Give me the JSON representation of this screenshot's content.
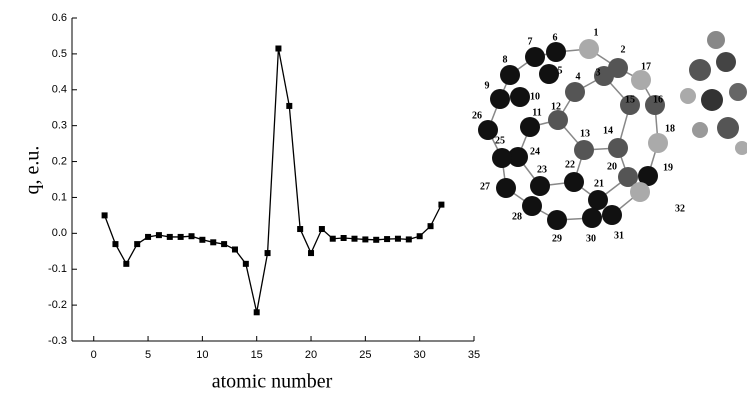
{
  "chart_data": {
    "type": "line",
    "xlabel": "atomic number",
    "ylabel": "q, e.u.",
    "x": [
      1,
      2,
      3,
      4,
      5,
      6,
      7,
      8,
      9,
      10,
      11,
      12,
      13,
      14,
      15,
      16,
      17,
      18,
      19,
      20,
      21,
      22,
      23,
      24,
      25,
      26,
      27,
      28,
      29,
      30,
      31,
      32
    ],
    "values": [
      0.05,
      -0.03,
      -0.085,
      -0.03,
      -0.01,
      -0.005,
      -0.01,
      -0.01,
      -0.008,
      -0.018,
      -0.025,
      -0.03,
      -0.045,
      -0.085,
      -0.22,
      -0.055,
      0.515,
      0.355,
      0.012,
      -0.055,
      0.012,
      -0.015,
      -0.013,
      -0.015,
      -0.017,
      -0.018,
      -0.016,
      -0.015,
      -0.017,
      -0.008,
      0.02,
      0.08
    ],
    "color": "#000000",
    "xlim": [
      -2,
      35
    ],
    "xticks": [
      0,
      5,
      10,
      15,
      20,
      25,
      30,
      35
    ],
    "ylim": [
      -0.3,
      0.6
    ],
    "yticks": [
      0.6,
      0.5,
      0.4,
      0.3,
      0.2,
      0.1,
      {
        "value": 0,
        "label": "0.0"
      },
      -0.1,
      -0.2,
      -0.3
    ]
  },
  "molecule": {
    "atom_labels": [
      1,
      2,
      3,
      4,
      5,
      6,
      7,
      8,
      9,
      10,
      11,
      12,
      13,
      14,
      15,
      16,
      17,
      18,
      19,
      20,
      21,
      22,
      23,
      24,
      25,
      26,
      27,
      28,
      29,
      30,
      31,
      32
    ]
  }
}
